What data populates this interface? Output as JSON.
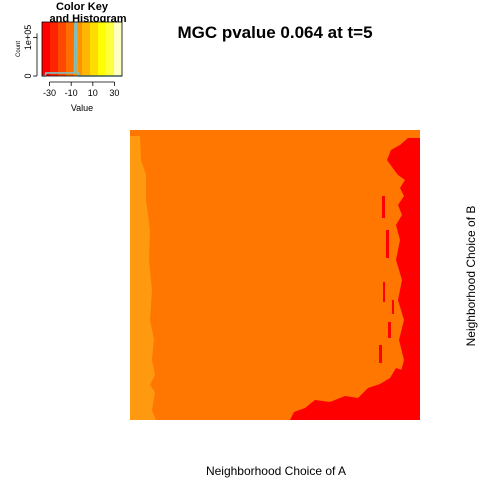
{
  "chart_data": [
    {
      "type": "histogram",
      "title": "Color Key\nand Histogram",
      "xlabel": "Value",
      "ylabel": "Count",
      "x_ticks": [
        "-30",
        "-10",
        "10",
        "30"
      ],
      "x_tick_values": [
        -30,
        -10,
        10,
        30
      ],
      "y_ticks": [
        "0",
        "1e+05"
      ],
      "y_tick_values": [
        0,
        100000
      ],
      "xlim": [
        -37,
        37
      ],
      "ylim": [
        0,
        140000
      ],
      "color_scale": [
        "#FF0000",
        "#FF2400",
        "#FF4900",
        "#FF6D00",
        "#FF9200",
        "#FFB600",
        "#FFDB00",
        "#FFFF00",
        "#FFFF40",
        "#FFFFBF"
      ],
      "density_line": {
        "x": [
          -37,
          -34,
          -33.5,
          -30,
          -20,
          -10,
          -7,
          -6.5,
          -5,
          -4.5,
          -3.5,
          -3,
          37
        ],
        "y": [
          0,
          0,
          8000,
          8000,
          8000,
          8000,
          8000,
          138000,
          138000,
          8000,
          8000,
          0,
          0
        ]
      }
    },
    {
      "type": "heatmap",
      "title": "MGC pvalue  0.064 at t=5",
      "xlabel": "Neighborhood Choice of A",
      "ylabel": "Neighborhood Choice of B",
      "colors": {
        "dominant": "#FF7600",
        "low": "#FF0000",
        "edge": "#FF9A10"
      }
    }
  ]
}
